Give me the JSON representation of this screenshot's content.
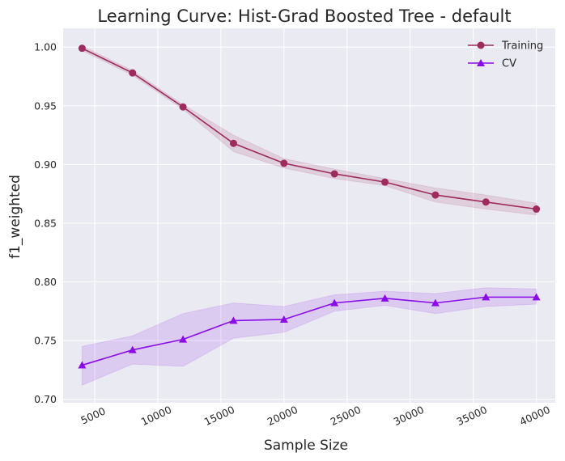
{
  "chart_data": {
    "type": "line",
    "title": "Learning Curve: Hist-Grad Boosted Tree - default",
    "xlabel": "Sample Size",
    "ylabel": "f1_weighted",
    "x": [
      4000,
      8000,
      12000,
      16000,
      20000,
      24000,
      28000,
      32000,
      36000,
      40000
    ],
    "xlim": [
      2500,
      41500
    ],
    "ylim": [
      0.697,
      1.016
    ],
    "xticks": [
      5000,
      10000,
      15000,
      20000,
      25000,
      30000,
      35000,
      40000
    ],
    "yticks": [
      0.7,
      0.75,
      0.8,
      0.85,
      0.9,
      0.95,
      1.0
    ],
    "xtick_labels": [
      "5000",
      "10000",
      "15000",
      "20000",
      "25000",
      "30000",
      "35000",
      "40000"
    ],
    "ytick_labels": [
      "0.70",
      "0.75",
      "0.80",
      "0.85",
      "0.90",
      "0.95",
      "1.00"
    ],
    "grid": true,
    "legend_position": "top-right",
    "series": [
      {
        "name": "Training",
        "color": "#9e2a5e",
        "marker": "circle",
        "values": [
          0.999,
          0.978,
          0.949,
          0.918,
          0.901,
          0.892,
          0.885,
          0.874,
          0.868,
          0.862
        ],
        "lower": [
          0.997,
          0.976,
          0.947,
          0.911,
          0.897,
          0.888,
          0.882,
          0.868,
          0.862,
          0.857
        ],
        "upper": [
          1.001,
          0.98,
          0.951,
          0.925,
          0.905,
          0.896,
          0.888,
          0.88,
          0.874,
          0.867
        ]
      },
      {
        "name": "CV",
        "color": "#8a0ce8",
        "marker": "triangle",
        "values": [
          0.729,
          0.742,
          0.751,
          0.767,
          0.768,
          0.782,
          0.786,
          0.782,
          0.787,
          0.787
        ],
        "lower": [
          0.712,
          0.73,
          0.728,
          0.752,
          0.757,
          0.775,
          0.78,
          0.773,
          0.779,
          0.781
        ],
        "upper": [
          0.745,
          0.754,
          0.773,
          0.782,
          0.779,
          0.789,
          0.792,
          0.79,
          0.795,
          0.794
        ]
      }
    ]
  },
  "style": {
    "plot_background": "#eaeaf2",
    "grid_color": "#ffffff",
    "text_color": "#262626"
  }
}
